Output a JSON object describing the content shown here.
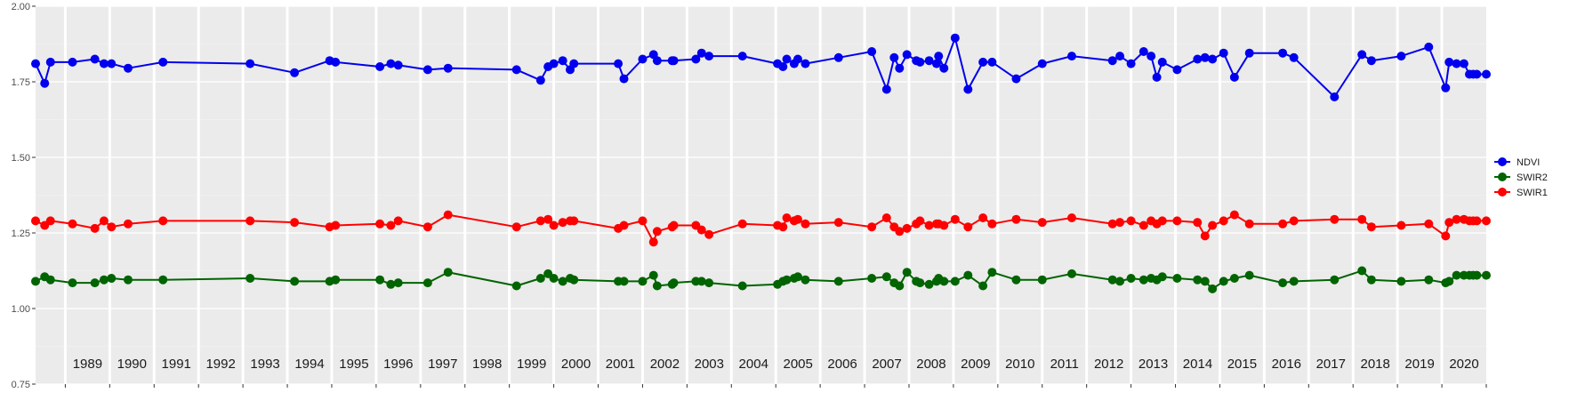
{
  "chart_data": {
    "type": "line",
    "title": "",
    "xlabel": "",
    "ylabel": "",
    "ylim": [
      0.75,
      2.0
    ],
    "xlim": [
      "1988-05-01",
      "2021-01-01"
    ],
    "y_ticks": [
      "0.75",
      "1.00",
      "1.25",
      "1.50",
      "1.75",
      "2.00"
    ],
    "x_ticks": [
      "1989",
      "1990",
      "1991",
      "1992",
      "1993",
      "1994",
      "1995",
      "1996",
      "1997",
      "1998",
      "1999",
      "2000",
      "2001",
      "2002",
      "2003",
      "2004",
      "2005",
      "2006",
      "2007",
      "2008",
      "2009",
      "2010",
      "2011",
      "2012",
      "2013",
      "2014",
      "2015",
      "2016",
      "2017",
      "2018",
      "2019",
      "2020"
    ],
    "grid": true,
    "legend_position": "right",
    "legend": [
      {
        "name": "NDVI",
        "color": "#0000ee"
      },
      {
        "name": "SWIR2",
        "color": "#006400"
      },
      {
        "name": "SWIR1",
        "color": "#ff0000"
      }
    ],
    "x": [
      "1988-05-01",
      "1988-07-15",
      "1988-09-01",
      "1989-03-01",
      "1989-09-01",
      "1989-11-15",
      "1990-01-15",
      "1990-06-01",
      "1991-03-15",
      "1993-03-01",
      "1994-03-01",
      "1994-12-15",
      "1995-02-01",
      "1996-02-01",
      "1996-05-01",
      "1996-07-01",
      "1997-03-01",
      "1997-08-15",
      "1999-03-01",
      "1999-09-15",
      "1999-11-15",
      "2000-01-01",
      "2000-03-15",
      "2000-05-15",
      "2000-06-15",
      "2001-06-15",
      "2001-08-01",
      "2002-01-01",
      "2002-04-01",
      "2002-05-01",
      "2002-09-01",
      "2002-09-15",
      "2003-03-15",
      "2003-05-01",
      "2003-07-01",
      "2004-04-01",
      "2005-01-15",
      "2005-03-01",
      "2005-04-01",
      "2005-06-01",
      "2005-07-01",
      "2005-09-01",
      "2006-06-01",
      "2007-03-01",
      "2007-07-01",
      "2007-09-01",
      "2007-10-15",
      "2007-12-15",
      "2008-03-01",
      "2008-04-01",
      "2008-06-15",
      "2008-08-15",
      "2008-09-01",
      "2008-10-15",
      "2009-01-15",
      "2009-05-01",
      "2009-09-01",
      "2009-11-15",
      "2010-06-01",
      "2011-01-01",
      "2011-09-01",
      "2012-08-01",
      "2012-10-01",
      "2013-01-01",
      "2013-04-15",
      "2013-06-15",
      "2013-08-01",
      "2013-09-15",
      "2014-01-15",
      "2014-07-01",
      "2014-09-01",
      "2014-11-01",
      "2015-02-01",
      "2015-05-01",
      "2015-09-01",
      "2016-06-01",
      "2016-09-01",
      "2017-08-01",
      "2018-03-15",
      "2018-06-01",
      "2019-02-01",
      "2019-09-15",
      "2020-02-01",
      "2020-03-01",
      "2020-05-01",
      "2020-07-01",
      "2020-08-15",
      "2020-09-15",
      "2020-10-15",
      "2021-01-01"
    ],
    "series": [
      {
        "name": "NDVI",
        "color": "#0000ee",
        "values": [
          1.81,
          1.745,
          1.815,
          1.815,
          1.825,
          1.81,
          1.81,
          1.795,
          1.815,
          1.81,
          1.78,
          1.82,
          1.815,
          1.8,
          1.81,
          1.805,
          1.79,
          1.795,
          1.79,
          1.755,
          1.8,
          1.81,
          1.82,
          1.79,
          1.81,
          1.81,
          1.76,
          1.825,
          1.84,
          1.82,
          1.82,
          1.82,
          1.825,
          1.845,
          1.835,
          1.835,
          1.81,
          1.8,
          1.825,
          1.81,
          1.825,
          1.81,
          1.83,
          1.85,
          1.725,
          1.83,
          1.795,
          1.84,
          1.82,
          1.815,
          1.82,
          1.81,
          1.835,
          1.795,
          1.895,
          1.725,
          1.815,
          1.815,
          1.76,
          1.81,
          1.835,
          1.82,
          1.835,
          1.81,
          1.85,
          1.835,
          1.765,
          1.815,
          1.79,
          1.825,
          1.83,
          1.825,
          1.845,
          1.765,
          1.845,
          1.845,
          1.83,
          1.7,
          1.84,
          1.82,
          1.835,
          1.865,
          1.73,
          1.815,
          1.81,
          1.81,
          1.775,
          1.775,
          1.775,
          1.775
        ]
      },
      {
        "name": "SWIR2",
        "color": "#006400",
        "values": [
          1.09,
          1.105,
          1.095,
          1.085,
          1.085,
          1.095,
          1.1,
          1.095,
          1.095,
          1.1,
          1.09,
          1.09,
          1.095,
          1.095,
          1.08,
          1.085,
          1.085,
          1.12,
          1.075,
          1.1,
          1.115,
          1.1,
          1.09,
          1.1,
          1.095,
          1.09,
          1.09,
          1.09,
          1.11,
          1.075,
          1.08,
          1.085,
          1.09,
          1.09,
          1.085,
          1.075,
          1.08,
          1.09,
          1.095,
          1.1,
          1.105,
          1.095,
          1.09,
          1.1,
          1.105,
          1.085,
          1.075,
          1.12,
          1.09,
          1.085,
          1.08,
          1.09,
          1.1,
          1.09,
          1.09,
          1.11,
          1.075,
          1.12,
          1.095,
          1.095,
          1.115,
          1.095,
          1.09,
          1.1,
          1.095,
          1.1,
          1.095,
          1.105,
          1.1,
          1.095,
          1.09,
          1.065,
          1.09,
          1.1,
          1.11,
          1.085,
          1.09,
          1.095,
          1.125,
          1.095,
          1.09,
          1.095,
          1.085,
          1.09,
          1.11,
          1.11,
          1.11,
          1.11,
          1.11,
          1.11
        ]
      },
      {
        "name": "SWIR1",
        "color": "#ff0000",
        "values": [
          1.29,
          1.275,
          1.29,
          1.28,
          1.265,
          1.29,
          1.27,
          1.28,
          1.29,
          1.29,
          1.285,
          1.27,
          1.275,
          1.28,
          1.275,
          1.29,
          1.27,
          1.31,
          1.27,
          1.29,
          1.295,
          1.275,
          1.285,
          1.29,
          1.29,
          1.265,
          1.275,
          1.29,
          1.22,
          1.255,
          1.27,
          1.275,
          1.275,
          1.26,
          1.245,
          1.28,
          1.275,
          1.27,
          1.3,
          1.29,
          1.295,
          1.28,
          1.285,
          1.27,
          1.3,
          1.27,
          1.255,
          1.265,
          1.28,
          1.29,
          1.275,
          1.28,
          1.28,
          1.275,
          1.295,
          1.27,
          1.3,
          1.28,
          1.295,
          1.285,
          1.3,
          1.28,
          1.285,
          1.29,
          1.275,
          1.29,
          1.28,
          1.29,
          1.29,
          1.285,
          1.24,
          1.275,
          1.29,
          1.31,
          1.28,
          1.28,
          1.29,
          1.295,
          1.295,
          1.27,
          1.275,
          1.28,
          1.24,
          1.285,
          1.295,
          1.295,
          1.29,
          1.29,
          1.29,
          1.29
        ]
      }
    ]
  }
}
